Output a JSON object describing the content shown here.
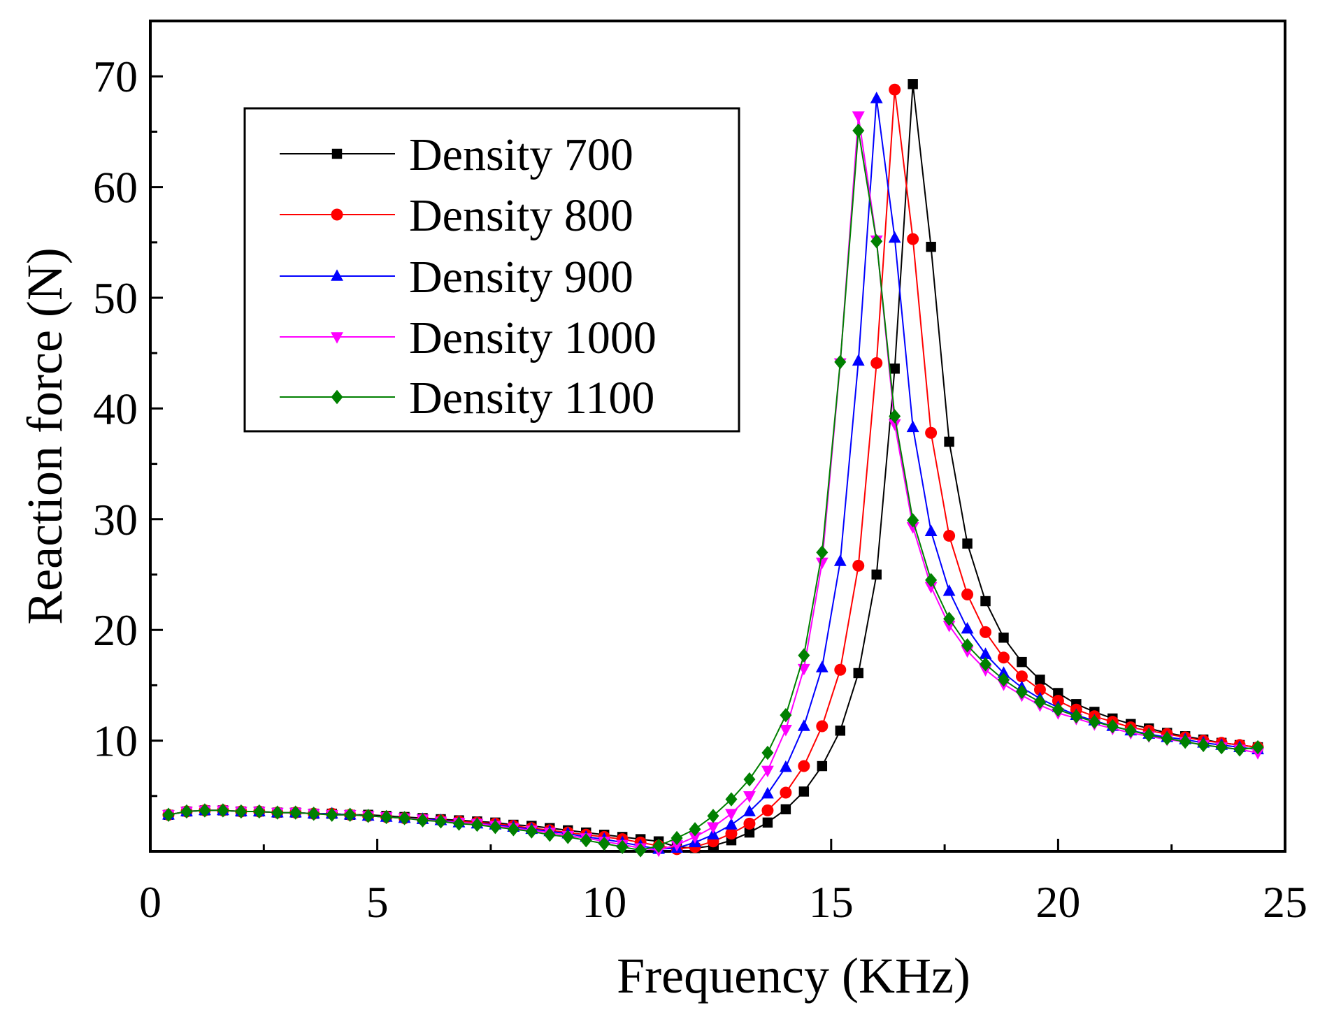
{
  "chart_data": {
    "type": "line",
    "title": "",
    "xlabel": "Frequency (KHz)",
    "ylabel": "Reaction force (N)",
    "xlim": [
      0,
      25
    ],
    "ylim": [
      0,
      75
    ],
    "xticks": [
      0,
      5,
      10,
      15,
      20,
      25
    ],
    "xtick_labels": [
      "0",
      "5",
      "10",
      "15",
      "20",
      "25"
    ],
    "yticks": [
      10,
      20,
      30,
      40,
      50,
      60,
      70
    ],
    "ytick_labels": [
      "10",
      "20",
      "30",
      "40",
      "50",
      "60",
      "70"
    ],
    "grid": false,
    "legend_position": "top-left",
    "series": [
      {
        "name": "Density 700",
        "color": "#000000",
        "marker": "square",
        "x": [
          0.4,
          0.8,
          1.2,
          1.6,
          2.0,
          2.4,
          2.8,
          3.2,
          3.6,
          4.0,
          4.4,
          4.8,
          5.2,
          5.6,
          6.0,
          6.4,
          6.8,
          7.2,
          7.6,
          8.0,
          8.4,
          8.8,
          9.2,
          9.6,
          10.0,
          10.4,
          10.8,
          11.2,
          11.6,
          12.0,
          12.4,
          12.8,
          13.2,
          13.6,
          14.0,
          14.4,
          14.8,
          15.2,
          15.6,
          16.0,
          16.4,
          16.8,
          17.2,
          17.6,
          18.0,
          18.4,
          18.8,
          19.2,
          19.6,
          20.0,
          20.4,
          20.8,
          21.2,
          21.6,
          22.0,
          22.4,
          22.8,
          23.2,
          23.6,
          24.0,
          24.4
        ],
        "y": [
          3.3,
          3.6,
          3.7,
          3.7,
          3.6,
          3.6,
          3.5,
          3.5,
          3.4,
          3.4,
          3.3,
          3.3,
          3.2,
          3.1,
          3.0,
          2.9,
          2.8,
          2.7,
          2.6,
          2.4,
          2.3,
          2.1,
          1.9,
          1.7,
          1.5,
          1.3,
          1.1,
          0.9,
          0.4,
          0.3,
          0.5,
          1.0,
          1.7,
          2.6,
          3.8,
          5.4,
          7.7,
          10.9,
          16.1,
          25.0,
          43.6,
          69.3,
          54.6,
          37.0,
          27.8,
          22.6,
          19.3,
          17.1,
          15.5,
          14.3,
          13.3,
          12.6,
          12.0,
          11.5,
          11.1,
          10.7,
          10.4,
          10.1,
          9.8,
          9.6,
          9.4
        ]
      },
      {
        "name": "Density 800",
        "color": "#ff0000",
        "marker": "circle",
        "x": [
          0.4,
          0.8,
          1.2,
          1.6,
          2.0,
          2.4,
          2.8,
          3.2,
          3.6,
          4.0,
          4.4,
          4.8,
          5.2,
          5.6,
          6.0,
          6.4,
          6.8,
          7.2,
          7.6,
          8.0,
          8.4,
          8.8,
          9.2,
          9.6,
          10.0,
          10.4,
          10.8,
          11.2,
          11.6,
          12.0,
          12.4,
          12.8,
          13.2,
          13.6,
          14.0,
          14.4,
          14.8,
          15.2,
          15.6,
          16.0,
          16.4,
          16.8,
          17.2,
          17.6,
          18.0,
          18.4,
          18.8,
          19.2,
          19.6,
          20.0,
          20.4,
          20.8,
          21.2,
          21.6,
          22.0,
          22.4,
          22.8,
          23.2,
          23.6,
          24.0,
          24.4
        ],
        "y": [
          3.3,
          3.6,
          3.7,
          3.7,
          3.6,
          3.6,
          3.5,
          3.5,
          3.4,
          3.4,
          3.3,
          3.2,
          3.1,
          3.0,
          2.9,
          2.8,
          2.7,
          2.6,
          2.5,
          2.3,
          2.1,
          1.9,
          1.7,
          1.5,
          1.3,
          1.1,
          0.8,
          0.5,
          0.2,
          0.4,
          0.9,
          1.6,
          2.5,
          3.7,
          5.3,
          7.7,
          11.3,
          16.4,
          25.8,
          44.1,
          68.8,
          55.3,
          37.8,
          28.5,
          23.2,
          19.8,
          17.5,
          15.8,
          14.6,
          13.6,
          12.8,
          12.2,
          11.7,
          11.2,
          10.9,
          10.6,
          10.3,
          10.0,
          9.8,
          9.6,
          9.4
        ]
      },
      {
        "name": "Density 900",
        "color": "#0000ff",
        "marker": "triangle-up",
        "x": [
          0.4,
          0.8,
          1.2,
          1.6,
          2.0,
          2.4,
          2.8,
          3.2,
          3.6,
          4.0,
          4.4,
          4.8,
          5.2,
          5.6,
          6.0,
          6.4,
          6.8,
          7.2,
          7.6,
          8.0,
          8.4,
          8.8,
          9.2,
          9.6,
          10.0,
          10.4,
          10.8,
          11.2,
          11.6,
          12.0,
          12.4,
          12.8,
          13.2,
          13.6,
          14.0,
          14.4,
          14.8,
          15.2,
          15.6,
          16.0,
          16.4,
          16.8,
          17.2,
          17.6,
          18.0,
          18.4,
          18.8,
          19.2,
          19.6,
          20.0,
          20.4,
          20.8,
          21.2,
          21.6,
          22.0,
          22.4,
          22.8,
          23.2,
          23.6,
          24.0,
          24.4
        ],
        "y": [
          3.3,
          3.6,
          3.7,
          3.7,
          3.6,
          3.6,
          3.5,
          3.5,
          3.4,
          3.4,
          3.3,
          3.2,
          3.1,
          3.0,
          2.9,
          2.8,
          2.6,
          2.5,
          2.4,
          2.2,
          2.0,
          1.8,
          1.6,
          1.3,
          1.1,
          0.8,
          0.5,
          0.2,
          0.3,
          0.8,
          1.5,
          2.4,
          3.6,
          5.2,
          7.6,
          11.3,
          16.6,
          26.2,
          44.3,
          68.0,
          55.4,
          38.3,
          28.9,
          23.5,
          20.1,
          17.8,
          16.1,
          14.8,
          13.8,
          13.0,
          12.3,
          11.8,
          11.3,
          10.9,
          10.6,
          10.3,
          10.1,
          9.8,
          9.6,
          9.4,
          9.2
        ]
      },
      {
        "name": "Density 1000",
        "color": "#ff00ff",
        "marker": "triangle-down",
        "x": [
          0.4,
          0.8,
          1.2,
          1.6,
          2.0,
          2.4,
          2.8,
          3.2,
          3.6,
          4.0,
          4.4,
          4.8,
          5.2,
          5.6,
          6.0,
          6.4,
          6.8,
          7.2,
          7.6,
          8.0,
          8.4,
          8.8,
          9.2,
          9.6,
          10.0,
          10.4,
          10.8,
          11.2,
          11.6,
          12.0,
          12.4,
          12.8,
          13.2,
          13.6,
          14.0,
          14.4,
          14.8,
          15.2,
          15.6,
          16.0,
          16.4,
          16.8,
          17.2,
          17.6,
          18.0,
          18.4,
          18.8,
          19.2,
          19.6,
          20.0,
          20.4,
          20.8,
          21.2,
          21.6,
          22.0,
          22.4,
          22.8,
          23.2,
          23.6,
          24.0,
          24.4
        ],
        "y": [
          3.3,
          3.6,
          3.7,
          3.7,
          3.6,
          3.6,
          3.5,
          3.5,
          3.4,
          3.3,
          3.3,
          3.2,
          3.1,
          3.0,
          2.9,
          2.7,
          2.6,
          2.5,
          2.3,
          2.1,
          1.9,
          1.7,
          1.4,
          1.2,
          0.9,
          0.6,
          0.3,
          0.1,
          0.6,
          1.3,
          2.2,
          3.4,
          5.0,
          7.3,
          11.0,
          16.5,
          26.1,
          44.1,
          66.4,
          55.2,
          38.6,
          29.3,
          23.9,
          20.4,
          18.1,
          16.4,
          15.1,
          14.1,
          13.2,
          12.5,
          12.0,
          11.5,
          11.1,
          10.7,
          10.4,
          10.1,
          9.9,
          9.6,
          9.4,
          9.2,
          8.9
        ]
      },
      {
        "name": "Density 1100",
        "color": "#008000",
        "marker": "diamond",
        "x": [
          0.4,
          0.8,
          1.2,
          1.6,
          2.0,
          2.4,
          2.8,
          3.2,
          3.6,
          4.0,
          4.4,
          4.8,
          5.2,
          5.6,
          6.0,
          6.4,
          6.8,
          7.2,
          7.6,
          8.0,
          8.4,
          8.8,
          9.2,
          9.6,
          10.0,
          10.4,
          10.8,
          11.2,
          11.6,
          12.0,
          12.4,
          12.8,
          13.2,
          13.6,
          14.0,
          14.4,
          14.8,
          15.2,
          15.6,
          16.0,
          16.4,
          16.8,
          17.2,
          17.6,
          18.0,
          18.4,
          18.8,
          19.2,
          19.6,
          20.0,
          20.4,
          20.8,
          21.2,
          21.6,
          22.0,
          22.4,
          22.8,
          23.2,
          23.6,
          24.0,
          24.4
        ],
        "y": [
          3.3,
          3.6,
          3.7,
          3.7,
          3.6,
          3.6,
          3.5,
          3.5,
          3.4,
          3.3,
          3.3,
          3.2,
          3.1,
          3.0,
          2.8,
          2.7,
          2.5,
          2.4,
          2.2,
          2.0,
          1.8,
          1.5,
          1.3,
          1.0,
          0.7,
          0.4,
          0.1,
          0.5,
          1.2,
          2.0,
          3.2,
          4.7,
          6.5,
          8.9,
          12.3,
          17.7,
          27.0,
          44.2,
          65.1,
          55.1,
          39.3,
          29.9,
          24.5,
          21.0,
          18.6,
          16.9,
          15.5,
          14.4,
          13.5,
          12.8,
          12.2,
          11.7,
          11.3,
          10.9,
          10.5,
          10.2,
          9.9,
          9.6,
          9.4,
          9.2,
          9.4
        ]
      }
    ]
  }
}
